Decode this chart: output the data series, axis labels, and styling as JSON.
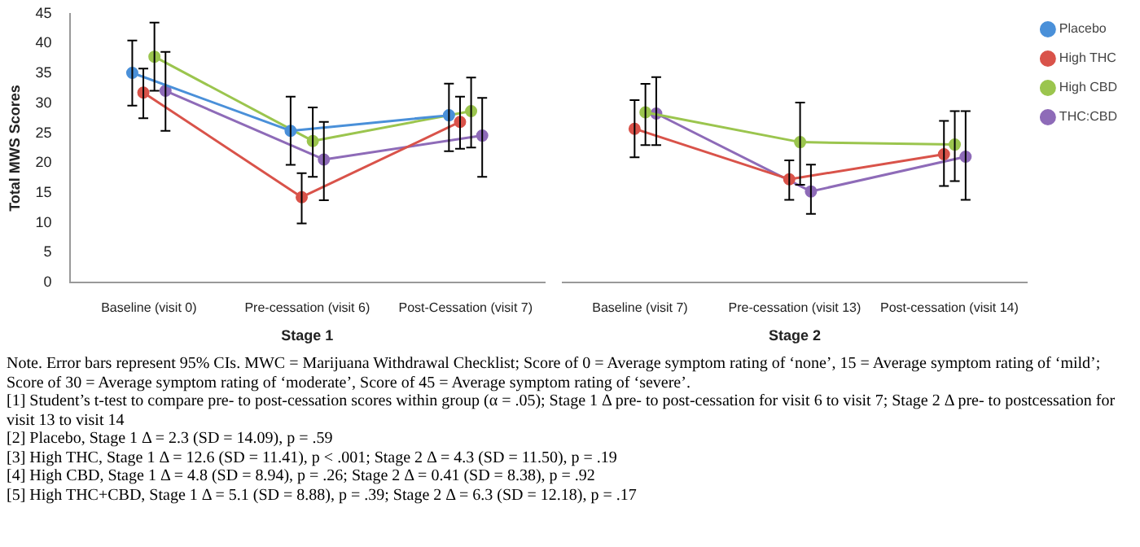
{
  "chart_data": [
    {
      "type": "line",
      "xlabel": "Stage 1",
      "ylabel": "Total MWS Scores",
      "categories": [
        "Baseline (visit 0)",
        "Pre-cessation (visit 6)",
        "Post-Cessation (visit 7)"
      ],
      "ylim": [
        0,
        45
      ],
      "yticks": [
        0,
        5,
        10,
        15,
        20,
        25,
        30,
        35,
        40,
        45
      ],
      "grid": false,
      "legend": false,
      "marker": "circle",
      "line_style": "solid",
      "series": [
        {
          "color": "#4a90d9",
          "values": [
            35.1,
            25.4,
            28.0
          ],
          "errors": [
            [
              29.6,
              40.5
            ],
            [
              19.7,
              31.1
            ],
            [
              22.0,
              33.3
            ]
          ]
        },
        {
          "color": "#d9534a",
          "values": [
            31.8,
            14.3,
            26.9
          ],
          "errors": [
            [
              27.5,
              35.8
            ],
            [
              9.9,
              18.3
            ],
            [
              22.4,
              31.1
            ]
          ]
        },
        {
          "color": "#9bc54e",
          "values": [
            37.8,
            23.7,
            28.7
          ],
          "errors": [
            [
              32.1,
              43.5
            ],
            [
              17.7,
              29.3
            ],
            [
              22.6,
              34.3
            ]
          ]
        },
        {
          "color": "#8e6bb8",
          "values": [
            32.1,
            20.6,
            24.6
          ],
          "errors": [
            [
              25.4,
              38.6
            ],
            [
              13.8,
              26.9
            ],
            [
              17.7,
              30.9
            ]
          ]
        }
      ],
      "annotations": [
        "Note. Error bars represent 95% CIs. MWC = Marijuana Withdrawal Checklist; Score of 0 = Average symptom rating of ‘none’, 15 = Average symptom rating of ‘mild’; Score of 30 = Average symptom rating of ‘moderate’, Score of 45 = Average symptom rating of ‘severe’.",
        "[1] Student’s t-test to compare pre- to post-cessation scores within group (α = .05); Stage 1 Δ pre- to post-cessation for visit 6 to visit 7; Stage 2 Δ pre- to postcessation for visit 13 to visit 14",
        "[2] Placebo, Stage 1 Δ = 2.3 (SD = 14.09), p = .59",
        "[3] High THC, Stage 1 Δ = 12.6 (SD = 11.41), p < .001; Stage 2 Δ = 4.3 (SD = 11.50), p = .19",
        "[4] High CBD, Stage 1 Δ = 4.8 (SD = 8.94), p = .26; Stage 2 Δ = 0.41 (SD = 8.38), p = .92",
        "[5] High THC+CBD, Stage 1 Δ = 5.1 (SD = 8.88), p = .39; Stage 2 Δ = 6.3 (SD = 12.18), p = .17"
      ]
    },
    {
      "type": "line",
      "xlabel": "Stage 2",
      "categories": [
        "Baseline (visit 7)",
        "Pre-cessation (visit 13)",
        "Post-cessation (visit 14)"
      ],
      "ylim": [
        0,
        45
      ],
      "tick_labels": "x",
      "grid": false,
      "legend": "top right",
      "marker": "circle",
      "line_style": "solid",
      "series": [
        {
          "name": "Placebo",
          "color": "#4a90d9",
          "values": [
            null,
            null,
            null
          ]
        },
        {
          "name": "High THC",
          "color": "#d9534a",
          "values": [
            25.3,
            17.0,
            21.1
          ],
          "errors": [
            [
              20.6,
              30.0
            ],
            [
              13.6,
              20.1
            ],
            [
              15.9,
              26.6
            ]
          ]
        },
        {
          "name": "High CBD",
          "color": "#9bc54e",
          "values": [
            28.0,
            23.1,
            22.7
          ],
          "errors": [
            [
              22.6,
              32.7
            ],
            [
              16.1,
              29.6
            ],
            [
              16.7,
              28.2
            ]
          ]
        },
        {
          "name": "THC:CBD",
          "color": "#8e6bb8",
          "values": [
            27.8,
            15.0,
            20.7
          ],
          "errors": [
            [
              22.6,
              33.8
            ],
            [
              11.3,
              19.4
            ],
            [
              13.6,
              28.2
            ]
          ]
        }
      ]
    }
  ]
}
